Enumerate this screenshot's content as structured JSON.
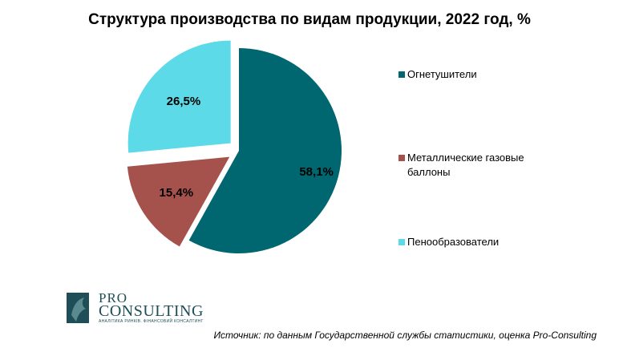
{
  "chart_data": {
    "type": "pie",
    "title": "Структура производства по видам продукции, 2022 год, %",
    "categories": [
      "Огнетушители",
      "Металлические газовые баллоны",
      "Пенообразователи"
    ],
    "values": [
      58.1,
      15.4,
      26.5
    ],
    "value_labels": [
      "58,1%",
      "15,4%",
      "26,5%"
    ],
    "colors": [
      "#00666f",
      "#a5524c",
      "#5ddae8"
    ],
    "legend_position": "right",
    "exploded": true
  },
  "logo": {
    "pro": "PRO",
    "consulting": "CONSULTING",
    "tagline": "АНАЛІТИКА РИНКІВ. ФІНАНСОВИЙ КОНСАЛТИНГ"
  },
  "source_note": "Источник: по данным Государственной службы статистики, оценка Pro-Consulting"
}
